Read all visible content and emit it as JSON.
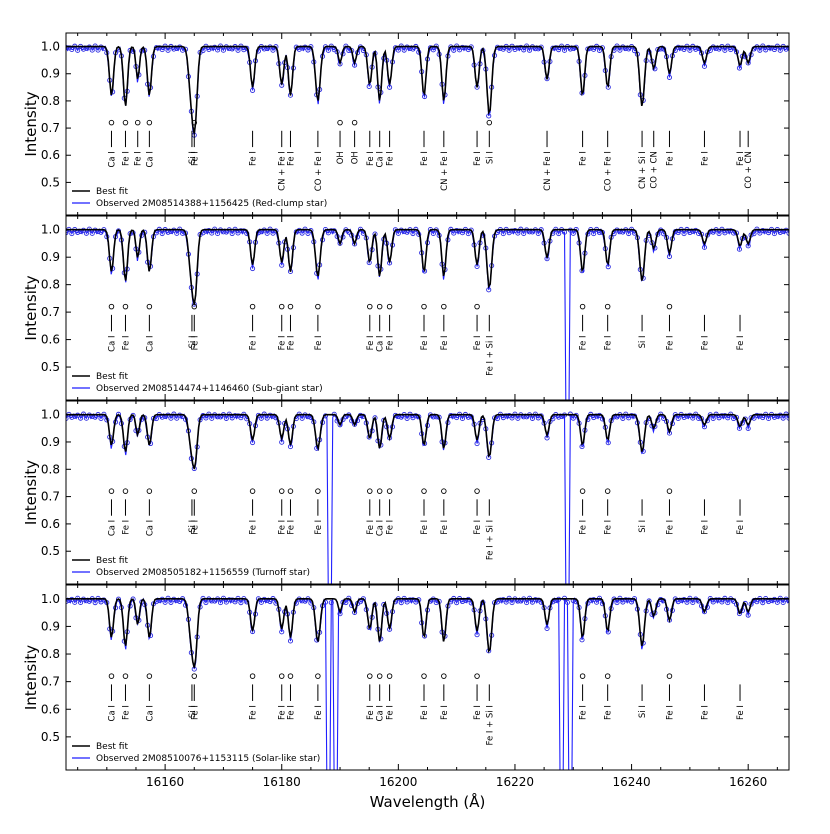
{
  "chart_data": {
    "type": "line",
    "shared_xlabel": "Wavelength (Å)",
    "ylabel": "Intensity",
    "xlim": [
      16143,
      16267
    ],
    "ylim": [
      0.38,
      1.05
    ],
    "x_ticks": [
      16160,
      16180,
      16200,
      16220,
      16240,
      16260
    ],
    "y_ticks": [
      0.5,
      0.6,
      0.7,
      0.8,
      0.9,
      1.0
    ],
    "grid": false,
    "legend_position": "bottom-left",
    "colors": {
      "model": "#000000",
      "observed": "#1f1fff",
      "marker_edge": "#2a2ae0"
    },
    "panels": [
      {
        "legend": [
          "Best fit",
          "Observed 2M08514388+1156425 (Red-clump star)"
        ],
        "depth": 1.0,
        "gaps": [],
        "lines": [
          {
            "x": 16150.8,
            "label": "Ca I",
            "marker": true
          },
          {
            "x": 16153.2,
            "label": "Fe I",
            "marker": true
          },
          {
            "x": 16155.3,
            "label": "Fe I",
            "marker": true
          },
          {
            "x": 16157.3,
            "label": "Ca I",
            "marker": true
          },
          {
            "x": 16164.6,
            "label": "Si I",
            "marker": false
          },
          {
            "x": 16165.0,
            "label": "Fe I",
            "marker": true
          },
          {
            "x": 16175.0,
            "label": "Fe I",
            "marker": false
          },
          {
            "x": 16180.0,
            "label": "CN + Fe I",
            "marker": false
          },
          {
            "x": 16181.5,
            "label": "Fe I",
            "marker": false
          },
          {
            "x": 16186.2,
            "label": "CO + Fe I",
            "marker": false
          },
          {
            "x": 16190.0,
            "label": "OH",
            "marker": true
          },
          {
            "x": 16192.5,
            "label": "OH",
            "marker": true
          },
          {
            "x": 16195.1,
            "label": "Fe I",
            "marker": false
          },
          {
            "x": 16196.8,
            "label": "Ca I",
            "marker": false
          },
          {
            "x": 16198.5,
            "label": "Fe I",
            "marker": false
          },
          {
            "x": 16204.4,
            "label": "Fe I",
            "marker": false
          },
          {
            "x": 16207.8,
            "label": "CN + Fe I",
            "marker": false
          },
          {
            "x": 16213.5,
            "label": "Fe I",
            "marker": false
          },
          {
            "x": 16215.6,
            "label": "Si I",
            "marker": true
          },
          {
            "x": 16225.5,
            "label": "CN + Fe I",
            "marker": false
          },
          {
            "x": 16231.6,
            "label": "Fe I",
            "marker": false
          },
          {
            "x": 16235.9,
            "label": "CO + Fe I",
            "marker": false
          },
          {
            "x": 16241.8,
            "label": "CN + Si I",
            "marker": false
          },
          {
            "x": 16243.8,
            "label": "CO + CN",
            "marker": false
          },
          {
            "x": 16246.5,
            "label": "Fe I",
            "marker": false
          },
          {
            "x": 16252.5,
            "label": "Fe I",
            "marker": false
          },
          {
            "x": 16258.6,
            "label": "Fe I",
            "marker": false
          },
          {
            "x": 16260.0,
            "label": "CO + CN",
            "marker": false
          }
        ]
      },
      {
        "legend": [
          "Best fit",
          "Observed 2M08514474+1146460 (Sub-giant star)"
        ],
        "depth": 0.85,
        "gaps": [
          16229.0
        ],
        "lines": [
          {
            "x": 16150.8,
            "label": "Ca I",
            "marker": true
          },
          {
            "x": 16153.2,
            "label": "Fe I",
            "marker": true
          },
          {
            "x": 16157.3,
            "label": "Ca I",
            "marker": true
          },
          {
            "x": 16164.6,
            "label": "Si I",
            "marker": false
          },
          {
            "x": 16165.0,
            "label": "Fe I",
            "marker": true
          },
          {
            "x": 16175.0,
            "label": "Fe I",
            "marker": true
          },
          {
            "x": 16180.0,
            "label": "Fe I",
            "marker": true
          },
          {
            "x": 16181.5,
            "label": "Fe I",
            "marker": true
          },
          {
            "x": 16186.2,
            "label": "Fe I",
            "marker": true
          },
          {
            "x": 16195.1,
            "label": "Fe I",
            "marker": true
          },
          {
            "x": 16196.8,
            "label": "Ca I",
            "marker": true
          },
          {
            "x": 16198.5,
            "label": "Fe I",
            "marker": true
          },
          {
            "x": 16204.4,
            "label": "Fe I",
            "marker": true
          },
          {
            "x": 16207.8,
            "label": "Fe I",
            "marker": true
          },
          {
            "x": 16213.5,
            "label": "Fe I",
            "marker": true
          },
          {
            "x": 16215.6,
            "label": "Fe I + Si I",
            "marker": false
          },
          {
            "x": 16231.6,
            "label": "Fe I",
            "marker": true
          },
          {
            "x": 16235.9,
            "label": "Fe I",
            "marker": true
          },
          {
            "x": 16241.8,
            "label": "Si I",
            "marker": false
          },
          {
            "x": 16246.5,
            "label": "Fe I",
            "marker": true
          },
          {
            "x": 16252.5,
            "label": "Fe I",
            "marker": false
          },
          {
            "x": 16258.6,
            "label": "Fe I",
            "marker": false
          }
        ]
      },
      {
        "legend": [
          "Best fit",
          "Observed 2M08505182+1156559 (Turnoff star)"
        ],
        "depth": 0.62,
        "gaps": [
          16188.2,
          16229.0
        ],
        "lines": [
          {
            "x": 16150.8,
            "label": "Ca I",
            "marker": true
          },
          {
            "x": 16153.2,
            "label": "Fe I",
            "marker": true
          },
          {
            "x": 16157.3,
            "label": "Ca I",
            "marker": true
          },
          {
            "x": 16164.6,
            "label": "Si I",
            "marker": false
          },
          {
            "x": 16165.0,
            "label": "Fe I",
            "marker": true
          },
          {
            "x": 16175.0,
            "label": "Fe I",
            "marker": true
          },
          {
            "x": 16180.0,
            "label": "Fe I",
            "marker": true
          },
          {
            "x": 16181.5,
            "label": "Fe I",
            "marker": true
          },
          {
            "x": 16186.2,
            "label": "Fe I",
            "marker": true
          },
          {
            "x": 16195.1,
            "label": "Fe I",
            "marker": true
          },
          {
            "x": 16196.8,
            "label": "Ca I",
            "marker": true
          },
          {
            "x": 16198.5,
            "label": "Fe I",
            "marker": true
          },
          {
            "x": 16204.4,
            "label": "Fe I",
            "marker": true
          },
          {
            "x": 16207.8,
            "label": "Fe I",
            "marker": true
          },
          {
            "x": 16213.5,
            "label": "Fe I",
            "marker": true
          },
          {
            "x": 16215.6,
            "label": "Fe I + Si I",
            "marker": false
          },
          {
            "x": 16231.6,
            "label": "Fe I",
            "marker": true
          },
          {
            "x": 16235.9,
            "label": "Fe I",
            "marker": true
          },
          {
            "x": 16241.8,
            "label": "Si I",
            "marker": false
          },
          {
            "x": 16246.5,
            "label": "Fe I",
            "marker": true
          },
          {
            "x": 16252.5,
            "label": "Fe I",
            "marker": false
          },
          {
            "x": 16258.6,
            "label": "Fe I",
            "marker": false
          }
        ]
      },
      {
        "legend": [
          "Best fit",
          "Observed 2M08510076+1153115 (Solar-like star)"
        ],
        "depth": 0.78,
        "gaps": [
          16188.0,
          16189.3,
          16228.0,
          16229.5
        ],
        "lines": [
          {
            "x": 16150.8,
            "label": "Ca I",
            "marker": true
          },
          {
            "x": 16153.2,
            "label": "Fe I",
            "marker": true
          },
          {
            "x": 16157.3,
            "label": "Ca I",
            "marker": true
          },
          {
            "x": 16164.6,
            "label": "Si I",
            "marker": false
          },
          {
            "x": 16165.0,
            "label": "Fe I",
            "marker": true
          },
          {
            "x": 16175.0,
            "label": "Fe I",
            "marker": true
          },
          {
            "x": 16180.0,
            "label": "Fe I",
            "marker": true
          },
          {
            "x": 16181.5,
            "label": "Fe I",
            "marker": true
          },
          {
            "x": 16186.2,
            "label": "Fe I",
            "marker": true
          },
          {
            "x": 16195.1,
            "label": "Fe I",
            "marker": true
          },
          {
            "x": 16196.8,
            "label": "Ca I",
            "marker": true
          },
          {
            "x": 16198.5,
            "label": "Fe I",
            "marker": true
          },
          {
            "x": 16204.4,
            "label": "Fe I",
            "marker": true
          },
          {
            "x": 16207.8,
            "label": "Fe I",
            "marker": true
          },
          {
            "x": 16213.5,
            "label": "Fe I",
            "marker": true
          },
          {
            "x": 16215.6,
            "label": "Fe I + Si I",
            "marker": false
          },
          {
            "x": 16231.6,
            "label": "Fe I",
            "marker": true
          },
          {
            "x": 16235.9,
            "label": "Fe I",
            "marker": true
          },
          {
            "x": 16241.8,
            "label": "Si I",
            "marker": false
          },
          {
            "x": 16246.5,
            "label": "Fe I",
            "marker": true
          },
          {
            "x": 16252.5,
            "label": "Fe I",
            "marker": false
          },
          {
            "x": 16258.6,
            "label": "Fe I",
            "marker": false
          }
        ]
      }
    ],
    "absorption_features": [
      {
        "x": 16150.8,
        "depth": 0.18,
        "width": 0.35
      },
      {
        "x": 16153.2,
        "depth": 0.22,
        "width": 0.35
      },
      {
        "x": 16155.3,
        "depth": 0.12,
        "width": 0.3
      },
      {
        "x": 16157.3,
        "depth": 0.18,
        "width": 0.35
      },
      {
        "x": 16164.4,
        "depth": 0.15,
        "width": 0.4
      },
      {
        "x": 16165.1,
        "depth": 0.28,
        "width": 0.4
      },
      {
        "x": 16175.0,
        "depth": 0.15,
        "width": 0.35
      },
      {
        "x": 16180.0,
        "depth": 0.14,
        "width": 0.35
      },
      {
        "x": 16181.5,
        "depth": 0.18,
        "width": 0.35
      },
      {
        "x": 16186.2,
        "depth": 0.2,
        "width": 0.4
      },
      {
        "x": 16190.0,
        "depth": 0.06,
        "width": 0.3
      },
      {
        "x": 16192.5,
        "depth": 0.06,
        "width": 0.3
      },
      {
        "x": 16195.1,
        "depth": 0.14,
        "width": 0.35
      },
      {
        "x": 16196.8,
        "depth": 0.2,
        "width": 0.35
      },
      {
        "x": 16198.5,
        "depth": 0.14,
        "width": 0.35
      },
      {
        "x": 16204.4,
        "depth": 0.18,
        "width": 0.35
      },
      {
        "x": 16207.8,
        "depth": 0.2,
        "width": 0.35
      },
      {
        "x": 16213.5,
        "depth": 0.15,
        "width": 0.35
      },
      {
        "x": 16215.6,
        "depth": 0.25,
        "width": 0.4
      },
      {
        "x": 16225.5,
        "depth": 0.12,
        "width": 0.35
      },
      {
        "x": 16231.6,
        "depth": 0.18,
        "width": 0.35
      },
      {
        "x": 16235.9,
        "depth": 0.15,
        "width": 0.35
      },
      {
        "x": 16241.8,
        "depth": 0.22,
        "width": 0.4
      },
      {
        "x": 16243.8,
        "depth": 0.08,
        "width": 0.35
      },
      {
        "x": 16246.5,
        "depth": 0.1,
        "width": 0.35
      },
      {
        "x": 16252.5,
        "depth": 0.06,
        "width": 0.35
      },
      {
        "x": 16258.6,
        "depth": 0.07,
        "width": 0.35
      },
      {
        "x": 16260.0,
        "depth": 0.06,
        "width": 0.35
      }
    ]
  }
}
